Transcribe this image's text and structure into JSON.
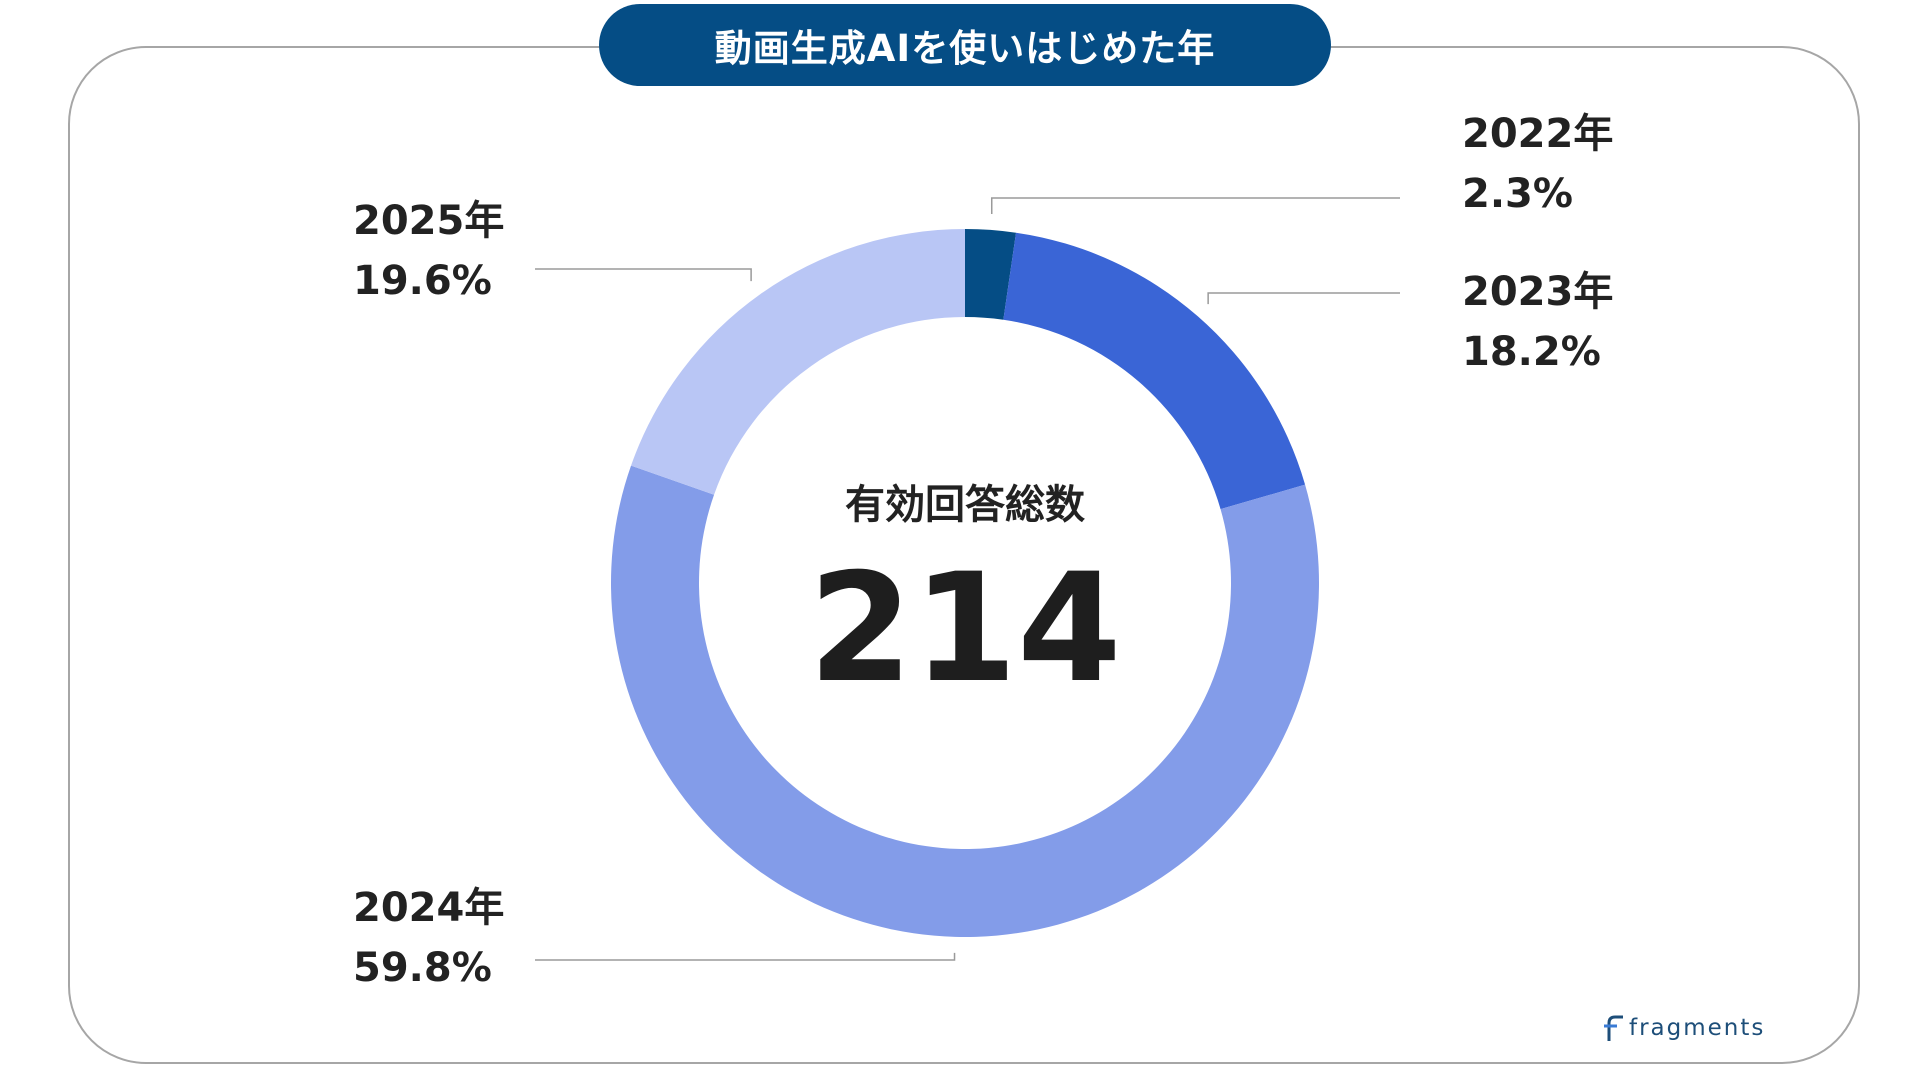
{
  "title": "動画生成AIを使いはじめた年",
  "center": {
    "label": "有効回答総数",
    "value": "214"
  },
  "brand": "fragments",
  "colors": {
    "title_bg": "#054d85",
    "slice_2022": "#054d85",
    "slice_2023": "#3a65d6",
    "slice_2024": "#839ce9",
    "slice_2025": "#b9c6f5",
    "leader_line": "#9a9a9a"
  },
  "chart_data": {
    "type": "pie",
    "variant": "donut",
    "categories": [
      "2022年",
      "2023年",
      "2024年",
      "2025年"
    ],
    "values": [
      2.3,
      18.2,
      59.8,
      19.6
    ],
    "unit": "%",
    "value_labels": [
      "2.3%",
      "18.2%",
      "59.8%",
      "19.6%"
    ],
    "total_responses": 214,
    "legend": "none"
  }
}
